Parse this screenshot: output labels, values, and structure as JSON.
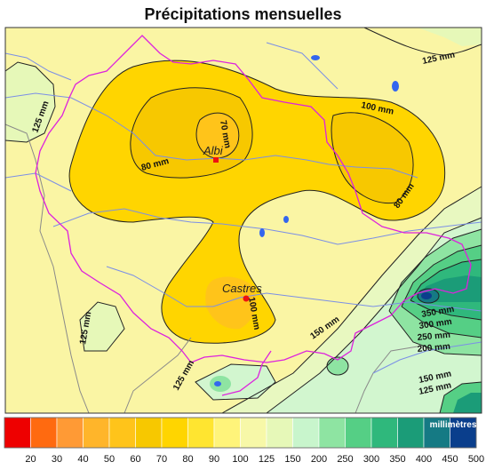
{
  "title": "Précipitations mensuelles",
  "cities": [
    {
      "name": "Albi"
    },
    {
      "name": "Castres"
    }
  ],
  "contour_labels": {
    "c125_ne": "125 mm",
    "c100_ne": "100 mm",
    "c70": "70 mm",
    "c80_w": "80 mm",
    "c80_e": "80 mm",
    "c125_nw": "125 mm",
    "c100_castres": "100 mm",
    "c125_sw": "125 mm",
    "c150": "150 mm",
    "c125_s": "125 mm",
    "c350": "350 mm",
    "c300": "300 mm",
    "c250": "250 mm",
    "c200": "200 mm",
    "c150_se": "150 mm",
    "c125_se": "125 mm"
  },
  "legend": {
    "unit": "millimètres",
    "bins": [
      {
        "label": "20",
        "color": "#ee0000"
      },
      {
        "label": "30",
        "color": "#ff6a10"
      },
      {
        "label": "40",
        "color": "#ff9a35"
      },
      {
        "label": "50",
        "color": "#ffb52a"
      },
      {
        "label": "60",
        "color": "#ffc41a"
      },
      {
        "label": "70",
        "color": "#f7c800"
      },
      {
        "label": "80",
        "color": "#ffd500"
      },
      {
        "label": "90",
        "color": "#ffe530"
      },
      {
        "label": "100",
        "color": "#fff47a"
      },
      {
        "label": "125",
        "color": "#f7f8a8"
      },
      {
        "label": "150",
        "color": "#e6f8b8"
      },
      {
        "label": "200",
        "color": "#c8f5cc"
      },
      {
        "label": "250",
        "color": "#8ee4a2"
      },
      {
        "label": "300",
        "color": "#55cf85"
      },
      {
        "label": "350",
        "color": "#2fb87c"
      },
      {
        "label": "400",
        "color": "#1b9c78"
      },
      {
        "label": "450",
        "color": "#157a84"
      },
      {
        "label": "500",
        "color": "#0a3e8c"
      }
    ]
  },
  "colors": {
    "region_border": "#dd22dd",
    "rivers": "#7b8fe6",
    "lakes": "#3366ee",
    "contours": "#222222",
    "dept_border": "#8a8a8a",
    "city_marker": "#ee1111"
  }
}
